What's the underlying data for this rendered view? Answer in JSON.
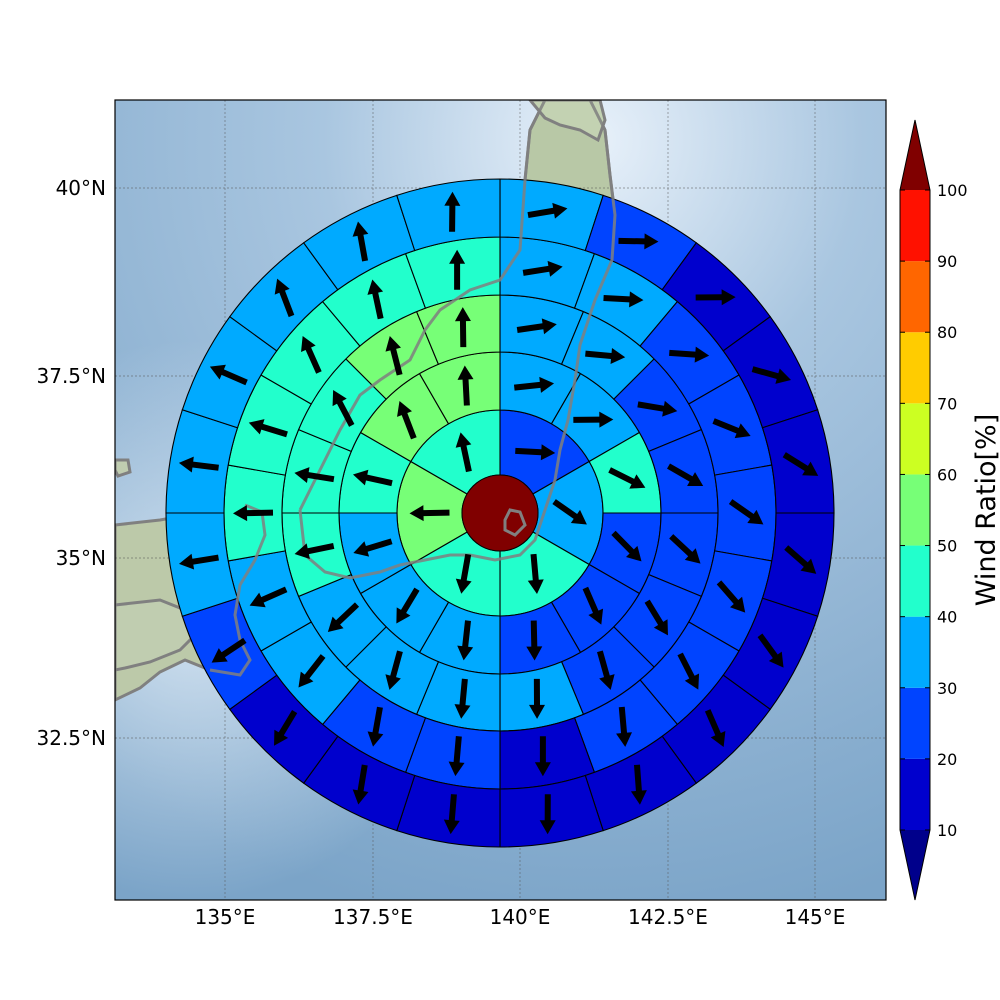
{
  "map": {
    "lat_ticks": [
      "40°N",
      "37.5°N",
      "35°N",
      "32.5°N"
    ],
    "lon_ticks": [
      "135°E",
      "137.5°E",
      "140°E",
      "142.5°E",
      "145°E"
    ]
  },
  "colorbar": {
    "label": "Wind Ratio[%]",
    "ticks": [
      "10",
      "20",
      "30",
      "40",
      "50",
      "60",
      "70",
      "80",
      "90",
      "100"
    ],
    "colors": [
      "#0000cd",
      "#0044ff",
      "#00aaff",
      "#22ffcc",
      "#77ff77",
      "#ccff22",
      "#ffcc00",
      "#ff6600",
      "#ff1100"
    ],
    "under_color": "#00008b",
    "over_color": "#800000"
  },
  "colors": {
    "ocean_light": "#c9dcee",
    "ocean_dark": "#7aa6cc",
    "land": "#b8c9a8",
    "coast": "#808080",
    "center": "#800000"
  }
}
